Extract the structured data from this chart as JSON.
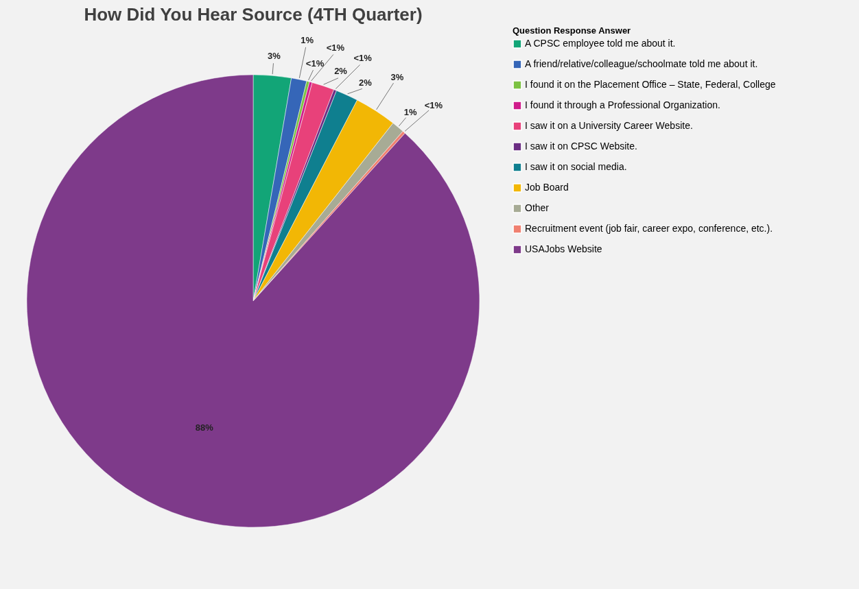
{
  "chart_data": {
    "type": "pie",
    "title": "How Did You Hear Source (4TH Quarter)",
    "legend_title": "Question Response Answer",
    "legend": "right",
    "categories": [
      "A CPSC employee told me about it.",
      "A friend/relative/colleague/schoolmate told me about it.",
      "I found it on the Placement Office – State, Federal, College",
      "I found it through a Professional Organization.",
      "I saw it on a University Career Website.",
      "I saw it on CPSC Website.",
      "I saw it on social media.",
      "Job Board",
      "Other",
      "Recruitment event (job fair, career expo, conference, etc.).",
      "USAJobs Website"
    ],
    "values": [
      2.7,
      1.1,
      0.2,
      0.2,
      1.6,
      0.2,
      1.6,
      3.0,
      0.9,
      0.2,
      88.3
    ],
    "value_labels": [
      "3%",
      "1%",
      "<1%",
      "<1%",
      "2%",
      "<1%",
      "2%",
      "3%",
      "1%",
      "<1%",
      "88%"
    ],
    "colors": [
      "#12a577",
      "#3566b8",
      "#7cc242",
      "#d01c8b",
      "#e8417a",
      "#6b2d83",
      "#0f7f8f",
      "#f2b705",
      "#a7ab95",
      "#f08070",
      "#7e3a8a"
    ]
  }
}
